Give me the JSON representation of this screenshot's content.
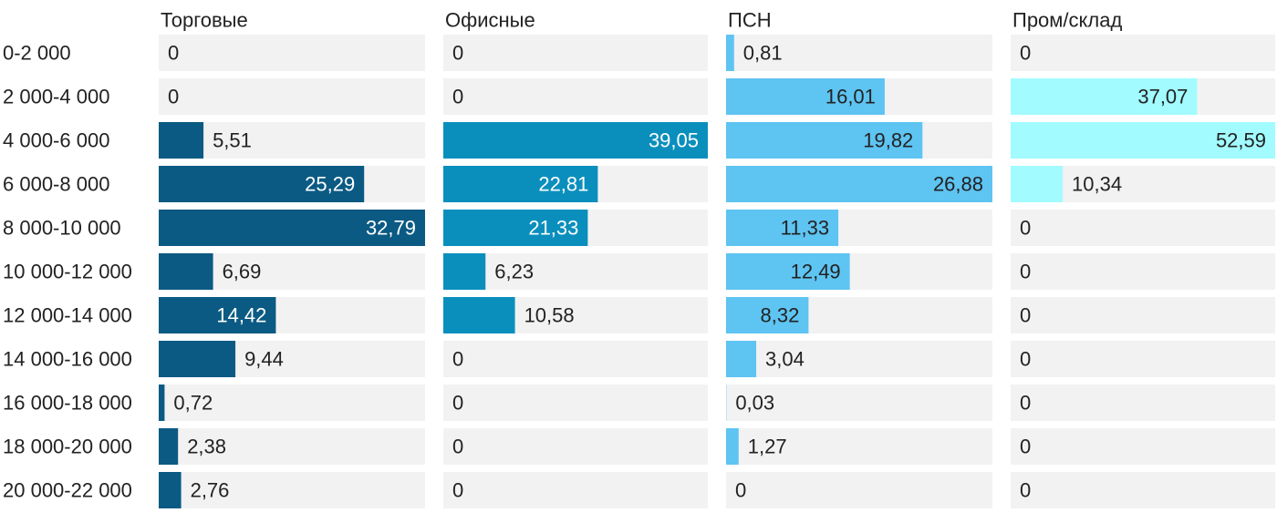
{
  "chart_data": {
    "type": "bar",
    "orientation": "horizontal",
    "layout": "small-multiples",
    "categories": [
      "0-2 000",
      "2 000-4 000",
      "4 000-6 000",
      "6 000-8 000",
      "8 000-10 000",
      "10 000-12 000",
      "12 000-14 000",
      "14 000-16 000",
      "16 000-18 000",
      "18 000-20 000",
      "20 000-22 000"
    ],
    "series": [
      {
        "name": "Торговые",
        "color": "#0b5a83",
        "label_inside": "#ffffff",
        "values": [
          0,
          0,
          5.51,
          25.29,
          32.79,
          6.69,
          14.42,
          9.44,
          0.72,
          2.38,
          2.76
        ],
        "labels": [
          "0",
          "0",
          "5,51",
          "25,29",
          "32,79",
          "6,69",
          "14,42",
          "9,44",
          "0,72",
          "2,38",
          "2,76"
        ]
      },
      {
        "name": "Офисные",
        "color": "#0a8fbd",
        "label_inside": "#ffffff",
        "values": [
          0,
          0,
          39.05,
          22.81,
          21.33,
          6.23,
          10.58,
          0,
          0,
          0,
          0
        ],
        "labels": [
          "0",
          "0",
          "39,05",
          "22,81",
          "21,33",
          "6,23",
          "10,58",
          "0",
          "0",
          "0",
          "0"
        ]
      },
      {
        "name": "ПСН",
        "color": "#5ec4f2",
        "label_inside": "#222222",
        "values": [
          0.81,
          16.01,
          19.82,
          26.88,
          11.33,
          12.49,
          8.32,
          3.04,
          0.03,
          1.27,
          0
        ],
        "labels": [
          "0,81",
          "16,01",
          "19,82",
          "26,88",
          "11,33",
          "12,49",
          "8,32",
          "3,04",
          "0,03",
          "1,27",
          "0"
        ]
      },
      {
        "name": "Пром/склад",
        "color": "#a2fbff",
        "label_inside": "#222222",
        "values": [
          0,
          37.07,
          52.59,
          10.34,
          0,
          0,
          0,
          0,
          0,
          0,
          0
        ],
        "labels": [
          "0",
          "37,07",
          "52,59",
          "10,34",
          "0",
          "0",
          "0",
          "0",
          "0",
          "0",
          "0"
        ]
      }
    ],
    "track_color": "#f2f2f2"
  }
}
